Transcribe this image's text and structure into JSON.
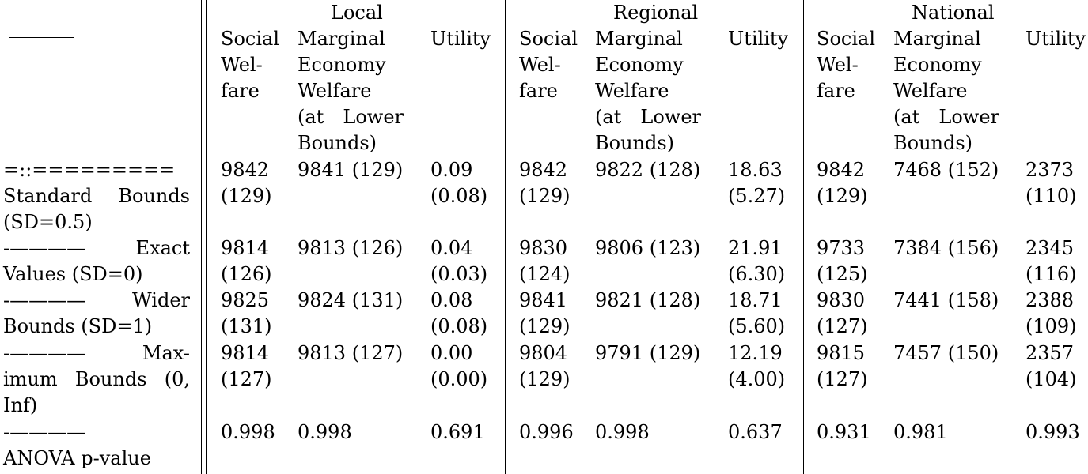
{
  "header": {
    "groups": [
      "Local",
      "Regional",
      "National"
    ],
    "columns": {
      "social_welfare": [
        "Social",
        "Wel-",
        "fare"
      ],
      "marginal_economy": [
        "Marginal",
        "Economy",
        "Welfare",
        "(at Lower",
        "Bounds)"
      ],
      "utility": "Utility"
    },
    "corner_rule": "——"
  },
  "rows": [
    {
      "label_lines": [
        "=::=========",
        "Standard Bounds",
        "(SD=0.5)"
      ],
      "local": {
        "sw": "9842",
        "sw_sd": "(129)",
        "me": "9841 (129)",
        "u": "0.09",
        "u_sd": "(0.08)"
      },
      "regional": {
        "sw": "9842",
        "sw_sd": "(129)",
        "me": "9822 (128)",
        "u": "18.63",
        "u_sd": "(5.27)"
      },
      "national": {
        "sw": "9842",
        "sw_sd": "(129)",
        "me": "7468 (152)",
        "u": "2373",
        "u_sd": "(110)"
      }
    },
    {
      "label_lines": [
        "-———— Exact",
        "Values (SD=0)"
      ],
      "local": {
        "sw": "9814",
        "sw_sd": "(126)",
        "me": "9813 (126)",
        "u": "0.04",
        "u_sd": "(0.03)"
      },
      "regional": {
        "sw": "9830",
        "sw_sd": "(124)",
        "me": "9806 (123)",
        "u": "21.91",
        "u_sd": "(6.30)"
      },
      "national": {
        "sw": "9733",
        "sw_sd": "(125)",
        "me": "7384 (156)",
        "u": "2345",
        "u_sd": "(116)"
      }
    },
    {
      "label_lines": [
        "-———— Wider",
        "Bounds (SD=1)"
      ],
      "local": {
        "sw": "9825",
        "sw_sd": "(131)",
        "me": "9824 (131)",
        "u": "0.08",
        "u_sd": "(0.08)"
      },
      "regional": {
        "sw": "9841",
        "sw_sd": "(129)",
        "me": "9821 (128)",
        "u": "18.71",
        "u_sd": "(5.60)"
      },
      "national": {
        "sw": "9830",
        "sw_sd": "(127)",
        "me": "7441 (158)",
        "u": "2388",
        "u_sd": "(109)"
      }
    },
    {
      "label_lines": [
        "-———— Max-",
        "imum Bounds (0,",
        "Inf)"
      ],
      "local": {
        "sw": "9814",
        "sw_sd": "(127)",
        "me": "9813 (127)",
        "u": "0.00",
        "u_sd": "(0.00)"
      },
      "regional": {
        "sw": "9804",
        "sw_sd": "(129)",
        "me": "9791 (129)",
        "u": "12.19",
        "u_sd": "(4.00)"
      },
      "national": {
        "sw": "9815",
        "sw_sd": "(127)",
        "me": "7457 (150)",
        "u": "2357",
        "u_sd": "(104)"
      }
    },
    {
      "label_lines": [
        "-————",
        "ANOVA p-value"
      ],
      "local": {
        "sw": "0.998",
        "sw_sd": "",
        "me": "0.998",
        "u": "0.691",
        "u_sd": ""
      },
      "regional": {
        "sw": "0.996",
        "sw_sd": "",
        "me": "0.998",
        "u": "0.637",
        "u_sd": ""
      },
      "national": {
        "sw": "0.931",
        "sw_sd": "",
        "me": "0.981",
        "u": "0.993",
        "u_sd": ""
      }
    }
  ]
}
